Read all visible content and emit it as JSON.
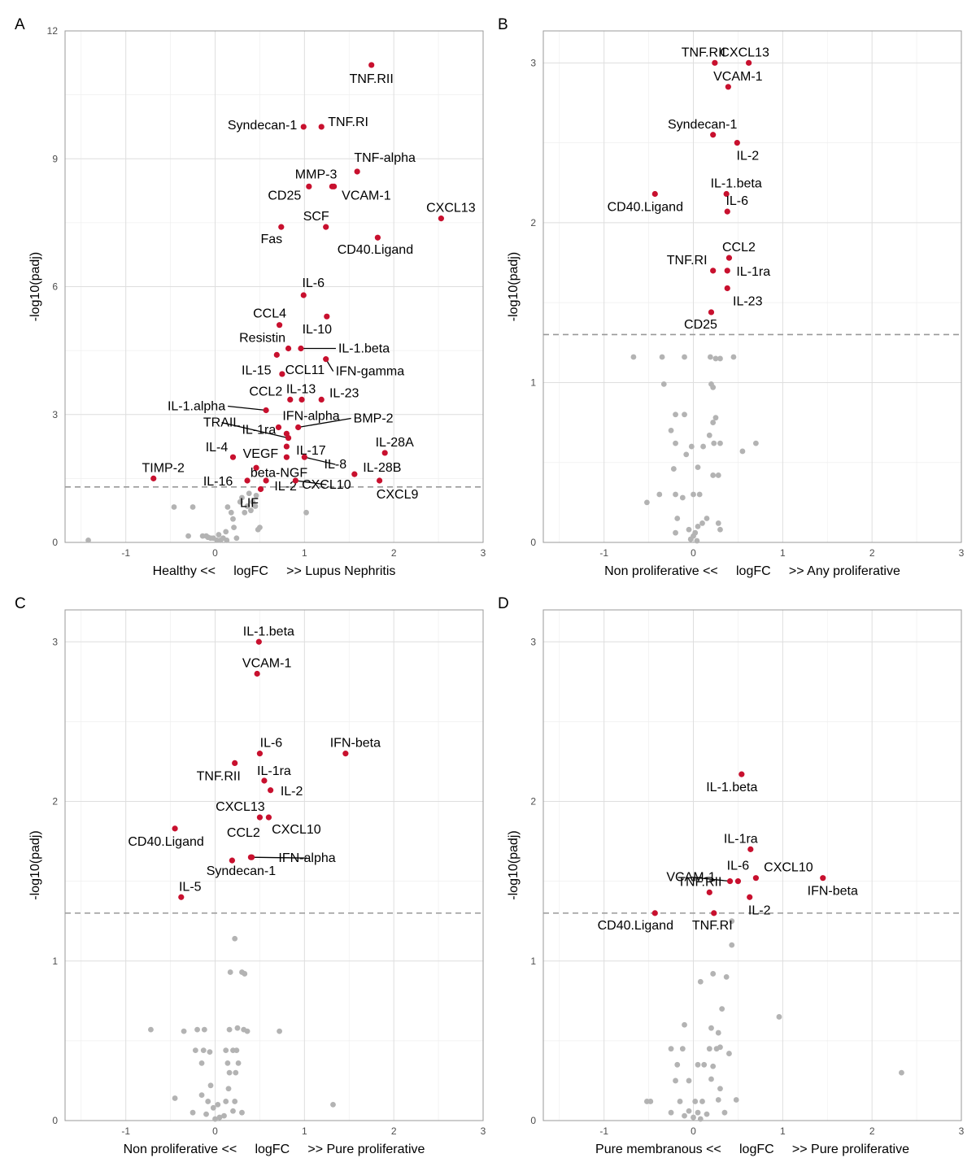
{
  "colors": {
    "significant": "#c8102e",
    "not_significant": "#b3b3b3",
    "threshold": "#999999"
  },
  "chart_data": [
    {
      "type": "scatter",
      "panel": "A",
      "xlabel": "Healthy <<     logFC     >> Lupus Nephritis",
      "ylabel": "-log10(padj)",
      "xlim": [
        -1.68,
        3.0
      ],
      "ylim": [
        0,
        12.0
      ],
      "x_ticks": [
        -1,
        0,
        1,
        2,
        3
      ],
      "y_ticks": [
        0,
        3,
        6,
        9,
        12
      ],
      "threshold": 1.3,
      "grid": true,
      "significant": [
        {
          "name": "TNF.RII",
          "x": 1.75,
          "y": 11.2
        },
        {
          "name": "Syndecan-1",
          "x": 0.99,
          "y": 9.75
        },
        {
          "name": "TNF.RI",
          "x": 1.19,
          "y": 9.75
        },
        {
          "name": "TNF-alpha",
          "x": 1.59,
          "y": 8.7
        },
        {
          "name": "MMP-3",
          "x": 1.33,
          "y": 8.35
        },
        {
          "name": "CD25",
          "x": 1.05,
          "y": 8.35
        },
        {
          "name": "VCAM-1",
          "x": 1.31,
          "y": 8.35
        },
        {
          "name": "CXCL13",
          "x": 2.53,
          "y": 7.6
        },
        {
          "name": "SCF",
          "x": 1.24,
          "y": 7.4
        },
        {
          "name": "Fas",
          "x": 0.74,
          "y": 7.4
        },
        {
          "name": "CD40.Ligand",
          "x": 1.82,
          "y": 7.15
        },
        {
          "name": "IL-6",
          "x": 0.99,
          "y": 5.8
        },
        {
          "name": "IL-10",
          "x": 1.25,
          "y": 5.3
        },
        {
          "name": "CCL4",
          "x": 0.72,
          "y": 5.1
        },
        {
          "name": "Resistin",
          "x": 0.82,
          "y": 4.55
        },
        {
          "name": "IL-1.beta",
          "x": 0.96,
          "y": 4.55
        },
        {
          "name": "IL-15",
          "x": 0.69,
          "y": 4.4
        },
        {
          "name": "IFN-gamma",
          "x": 1.24,
          "y": 4.3
        },
        {
          "name": "CCL11",
          "x": 0.75,
          "y": 3.95
        },
        {
          "name": "CCL2",
          "x": 0.84,
          "y": 3.35
        },
        {
          "name": "IL-13",
          "x": 0.97,
          "y": 3.35
        },
        {
          "name": "IL-23",
          "x": 1.19,
          "y": 3.35
        },
        {
          "name": "IL-1.alpha",
          "x": 0.57,
          "y": 3.1
        },
        {
          "name": "IFN-alpha",
          "x": 0.71,
          "y": 2.7
        },
        {
          "name": "BMP-2",
          "x": 0.93,
          "y": 2.7
        },
        {
          "name": "IL-1ra",
          "x": 0.8,
          "y": 2.55
        },
        {
          "name": "TRAIL",
          "x": 0.82,
          "y": 2.45
        },
        {
          "name": "IL-17",
          "x": 0.8,
          "y": 2.25
        },
        {
          "name": "IL-28A",
          "x": 1.9,
          "y": 2.1
        },
        {
          "name": "IL-4",
          "x": 0.2,
          "y": 2.0
        },
        {
          "name": "VEGF",
          "x": 0.8,
          "y": 2.0
        },
        {
          "name": "IL-8",
          "x": 1.0,
          "y": 2.0
        },
        {
          "name": "beta-NGF",
          "x": 0.46,
          "y": 1.75
        },
        {
          "name": "TIMP-2",
          "x": -0.69,
          "y": 1.5
        },
        {
          "name": "IL-28B",
          "x": 1.56,
          "y": 1.6
        },
        {
          "name": "IL-16",
          "x": 0.36,
          "y": 1.45
        },
        {
          "name": "CXCL9",
          "x": 1.84,
          "y": 1.45
        },
        {
          "name": "IL-2",
          "x": 0.57,
          "y": 1.45
        },
        {
          "name": "CXCL10",
          "x": 0.9,
          "y": 1.45
        },
        {
          "name": "LIF",
          "x": 0.51,
          "y": 1.25
        }
      ],
      "not_significant": [
        [
          -1.42,
          0.05
        ],
        [
          -0.46,
          0.83
        ],
        [
          -0.25,
          0.83
        ],
        [
          -0.3,
          0.15
        ],
        [
          -0.14,
          0.15
        ],
        [
          -0.1,
          0.15
        ],
        [
          -0.05,
          0.1
        ],
        [
          -0.02,
          0.1
        ],
        [
          0.02,
          0.05
        ],
        [
          0.04,
          0.18
        ],
        [
          0.06,
          0.05
        ],
        [
          0.09,
          0.1
        ],
        [
          0.13,
          0.05
        ],
        [
          0.14,
          0.83
        ],
        [
          0.18,
          0.7
        ],
        [
          0.2,
          0.55
        ],
        [
          0.21,
          0.35
        ],
        [
          0.28,
          0.95
        ],
        [
          0.3,
          1.05
        ],
        [
          0.33,
          0.7
        ],
        [
          0.36,
          0.85
        ],
        [
          0.38,
          1.15
        ],
        [
          0.4,
          0.75
        ],
        [
          0.42,
          0.95
        ],
        [
          0.45,
          0.85
        ],
        [
          0.48,
          0.3
        ],
        [
          0.5,
          0.35
        ],
        [
          0.46,
          1.1
        ],
        [
          1.02,
          0.7
        ],
        [
          0.12,
          0.25
        ],
        [
          0.24,
          0.1
        ],
        [
          -0.08,
          0.12
        ]
      ]
    },
    {
      "type": "scatter",
      "panel": "B",
      "xlabel": "Non proliferative <<     logFC     >> Any proliferative",
      "ylabel": "-log10(padj)",
      "xlim": [
        -1.68,
        3.0
      ],
      "ylim": [
        0,
        3.2
      ],
      "x_ticks": [
        -1,
        0,
        1,
        2,
        3
      ],
      "y_ticks": [
        1,
        2,
        3
      ],
      "threshold": 1.3,
      "grid": true,
      "significant": [
        {
          "name": "TNF.RII",
          "x": 0.24,
          "y": 3.0
        },
        {
          "name": "CXCL13",
          "x": 0.62,
          "y": 3.0
        },
        {
          "name": "VCAM-1",
          "x": 0.39,
          "y": 2.85
        },
        {
          "name": "Syndecan-1",
          "x": 0.22,
          "y": 2.55
        },
        {
          "name": "IL-2",
          "x": 0.49,
          "y": 2.5
        },
        {
          "name": "CD40.Ligand",
          "x": -0.43,
          "y": 2.18
        },
        {
          "name": "IL-1.beta",
          "x": 0.37,
          "y": 2.18
        },
        {
          "name": "IL-6",
          "x": 0.38,
          "y": 2.07
        },
        {
          "name": "CCL2",
          "x": 0.4,
          "y": 1.78
        },
        {
          "name": "TNF.RI",
          "x": 0.22,
          "y": 1.7
        },
        {
          "name": "IL-1ra",
          "x": 0.38,
          "y": 1.7
        },
        {
          "name": "IL-23",
          "x": 0.38,
          "y": 1.59
        },
        {
          "name": "CD25",
          "x": 0.2,
          "y": 1.44
        }
      ],
      "not_significant": [
        [
          -0.67,
          1.16
        ],
        [
          -0.35,
          1.16
        ],
        [
          -0.1,
          1.16
        ],
        [
          0.19,
          1.16
        ],
        [
          0.25,
          1.15
        ],
        [
          0.3,
          1.15
        ],
        [
          0.45,
          1.16
        ],
        [
          -0.33,
          0.99
        ],
        [
          0.2,
          0.99
        ],
        [
          0.22,
          0.97
        ],
        [
          -0.2,
          0.8
        ],
        [
          -0.1,
          0.8
        ],
        [
          -0.25,
          0.7
        ],
        [
          0.22,
          0.75
        ],
        [
          0.25,
          0.78
        ],
        [
          0.18,
          0.67
        ],
        [
          -0.2,
          0.62
        ],
        [
          -0.02,
          0.6
        ],
        [
          0.11,
          0.6
        ],
        [
          0.23,
          0.62
        ],
        [
          0.3,
          0.62
        ],
        [
          0.55,
          0.57
        ],
        [
          0.7,
          0.62
        ],
        [
          -0.08,
          0.55
        ],
        [
          -0.22,
          0.46
        ],
        [
          0.05,
          0.47
        ],
        [
          0.22,
          0.42
        ],
        [
          0.28,
          0.42
        ],
        [
          -0.38,
          0.3
        ],
        [
          -0.2,
          0.3
        ],
        [
          -0.12,
          0.28
        ],
        [
          0.0,
          0.3
        ],
        [
          0.07,
          0.3
        ],
        [
          -0.52,
          0.25
        ],
        [
          -0.18,
          0.15
        ],
        [
          0.15,
          0.15
        ],
        [
          0.28,
          0.12
        ],
        [
          -0.05,
          0.08
        ],
        [
          0.02,
          0.06
        ],
        [
          0.05,
          0.1
        ],
        [
          0.1,
          0.12
        ],
        [
          0.0,
          0.04
        ],
        [
          -0.03,
          0.02
        ],
        [
          0.04,
          0.01
        ],
        [
          -0.2,
          0.06
        ],
        [
          0.3,
          0.08
        ]
      ]
    },
    {
      "type": "scatter",
      "panel": "C",
      "xlabel": "Non proliferative <<     logFC     >> Pure proliferative",
      "ylabel": "-log10(padj)",
      "xlim": [
        -1.68,
        3.0
      ],
      "ylim": [
        0,
        3.2
      ],
      "x_ticks": [
        -1,
        0,
        1,
        2,
        3
      ],
      "y_ticks": [
        1,
        2,
        3
      ],
      "threshold": 1.3,
      "grid": true,
      "significant": [
        {
          "name": "IL-1.beta",
          "x": 0.49,
          "y": 3.0
        },
        {
          "name": "VCAM-1",
          "x": 0.47,
          "y": 2.8
        },
        {
          "name": "IL-6",
          "x": 0.5,
          "y": 2.3
        },
        {
          "name": "IFN-beta",
          "x": 1.46,
          "y": 2.3
        },
        {
          "name": "TNF.RII",
          "x": 0.22,
          "y": 2.24
        },
        {
          "name": "IL-1ra",
          "x": 0.55,
          "y": 2.13
        },
        {
          "name": "IL-2",
          "x": 0.62,
          "y": 2.07
        },
        {
          "name": "CXCL13",
          "x": 0.5,
          "y": 1.9
        },
        {
          "name": "CXCL10",
          "x": 0.6,
          "y": 1.9
        },
        {
          "name": "CD40.Ligand",
          "x": -0.45,
          "y": 1.83
        },
        {
          "name": "CCL2",
          "x": 0.19,
          "y": 1.63
        },
        {
          "name": "IFN-alpha",
          "x": 0.41,
          "y": 1.65
        },
        {
          "name": "Syndecan-1",
          "x": 0.4,
          "y": 1.65
        },
        {
          "name": "IL-5",
          "x": -0.38,
          "y": 1.4
        }
      ],
      "not_significant": [
        [
          0.22,
          1.14
        ],
        [
          0.17,
          0.93
        ],
        [
          0.3,
          0.93
        ],
        [
          0.33,
          0.92
        ],
        [
          -0.72,
          0.57
        ],
        [
          -0.35,
          0.56
        ],
        [
          -0.2,
          0.57
        ],
        [
          -0.12,
          0.57
        ],
        [
          0.16,
          0.57
        ],
        [
          0.25,
          0.58
        ],
        [
          0.32,
          0.57
        ],
        [
          0.36,
          0.56
        ],
        [
          0.72,
          0.56
        ],
        [
          -0.22,
          0.44
        ],
        [
          -0.13,
          0.44
        ],
        [
          -0.06,
          0.43
        ],
        [
          0.12,
          0.44
        ],
        [
          0.2,
          0.44
        ],
        [
          0.24,
          0.44
        ],
        [
          -0.15,
          0.36
        ],
        [
          0.14,
          0.36
        ],
        [
          0.26,
          0.36
        ],
        [
          0.16,
          0.3
        ],
        [
          0.23,
          0.3
        ],
        [
          -0.45,
          0.14
        ],
        [
          -0.15,
          0.16
        ],
        [
          -0.08,
          0.12
        ],
        [
          -0.02,
          0.08
        ],
        [
          0.03,
          0.1
        ],
        [
          0.12,
          0.12
        ],
        [
          0.22,
          0.12
        ],
        [
          0.3,
          0.05
        ],
        [
          1.32,
          0.1
        ],
        [
          -0.25,
          0.05
        ],
        [
          0.05,
          0.02
        ],
        [
          0.1,
          0.03
        ],
        [
          -0.1,
          0.04
        ],
        [
          0.0,
          0.01
        ],
        [
          0.2,
          0.06
        ],
        [
          -0.05,
          0.22
        ],
        [
          0.15,
          0.2
        ]
      ]
    },
    {
      "type": "scatter",
      "panel": "D",
      "xlabel": "Pure membranous <<     logFC     >> Pure proliferative",
      "ylabel": "-log10(padj)",
      "xlim": [
        -1.68,
        3.0
      ],
      "ylim": [
        0,
        3.2
      ],
      "x_ticks": [
        -1,
        0,
        1,
        2,
        3
      ],
      "y_ticks": [
        1,
        2,
        3
      ],
      "threshold": 1.3,
      "grid": true,
      "significant": [
        {
          "name": "IL-1.beta",
          "x": 0.54,
          "y": 2.17
        },
        {
          "name": "IL-1ra",
          "x": 0.64,
          "y": 1.7
        },
        {
          "name": "CXCL10",
          "x": 0.7,
          "y": 1.52
        },
        {
          "name": "IFN-beta",
          "x": 1.45,
          "y": 1.52
        },
        {
          "name": "IL-6",
          "x": 0.5,
          "y": 1.5
        },
        {
          "name": "VCAM-1",
          "x": 0.41,
          "y": 1.5
        },
        {
          "name": "TNF.RII",
          "x": 0.18,
          "y": 1.43
        },
        {
          "name": "IL-2",
          "x": 0.63,
          "y": 1.4
        },
        {
          "name": "CD40.Ligand",
          "x": -0.43,
          "y": 1.3
        },
        {
          "name": "TNF.RI",
          "x": 0.23,
          "y": 1.3
        }
      ],
      "not_significant": [
        [
          0.43,
          1.25
        ],
        [
          0.43,
          1.1
        ],
        [
          0.22,
          0.92
        ],
        [
          0.37,
          0.9
        ],
        [
          0.08,
          0.87
        ],
        [
          0.32,
          0.7
        ],
        [
          0.96,
          0.65
        ],
        [
          -0.1,
          0.6
        ],
        [
          0.2,
          0.58
        ],
        [
          0.28,
          0.55
        ],
        [
          -0.25,
          0.45
        ],
        [
          -0.12,
          0.45
        ],
        [
          0.18,
          0.45
        ],
        [
          0.26,
          0.45
        ],
        [
          0.3,
          0.46
        ],
        [
          0.4,
          0.42
        ],
        [
          -0.18,
          0.35
        ],
        [
          0.05,
          0.35
        ],
        [
          0.12,
          0.35
        ],
        [
          0.22,
          0.34
        ],
        [
          2.33,
          0.3
        ],
        [
          -0.2,
          0.25
        ],
        [
          -0.05,
          0.25
        ],
        [
          0.2,
          0.26
        ],
        [
          -0.52,
          0.12
        ],
        [
          -0.48,
          0.12
        ],
        [
          -0.15,
          0.12
        ],
        [
          0.02,
          0.12
        ],
        [
          0.1,
          0.12
        ],
        [
          0.28,
          0.13
        ],
        [
          0.48,
          0.13
        ],
        [
          -0.05,
          0.06
        ],
        [
          0.05,
          0.05
        ],
        [
          0.0,
          0.02
        ],
        [
          0.15,
          0.04
        ],
        [
          -0.1,
          0.03
        ],
        [
          0.08,
          0.01
        ],
        [
          0.35,
          0.05
        ],
        [
          -0.25,
          0.05
        ],
        [
          0.3,
          0.2
        ]
      ]
    }
  ],
  "panel_labels": [
    "A",
    "B",
    "C",
    "D"
  ]
}
